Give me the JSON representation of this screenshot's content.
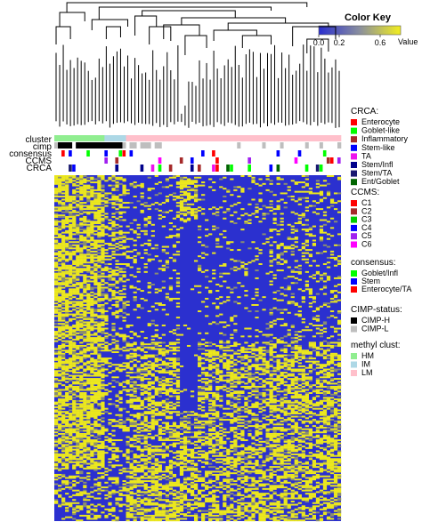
{
  "chart_data": {
    "type": "heatmap",
    "title": "",
    "color_key": {
      "title": "Color Key",
      "axis_label": "Value",
      "ticks": [
        "0.0",
        "0.2",
        "0.6"
      ],
      "tick_values": [
        0.0,
        0.2,
        0.6
      ],
      "range": [
        0,
        0.8
      ],
      "low_color": "#2a2fcf",
      "high_color": "#f2ee1e"
    },
    "annotation_rows": [
      "cluster",
      "cimp",
      "consensus",
      "CCMS",
      "CRCA"
    ],
    "legends": [
      {
        "title": "CRCA:",
        "items": [
          {
            "label": "Enterocyte",
            "color": "#ff0000"
          },
          {
            "label": "Goblet-like",
            "color": "#00ff00"
          },
          {
            "label": "Inflammatory",
            "color": "#a52a2a"
          },
          {
            "label": "Stem-like",
            "color": "#0000ff"
          },
          {
            "label": "TA",
            "color": "#ee11ee"
          },
          {
            "label": "Stem/Infl",
            "color": "#00008b"
          },
          {
            "label": "Stem/TA",
            "color": "#191970"
          },
          {
            "label": "Ent/Goblet",
            "color": "#006400"
          }
        ]
      },
      {
        "title": "CCMS:",
        "items": [
          {
            "label": "C1",
            "color": "#ff0000"
          },
          {
            "label": "C2",
            "color": "#a52a2a"
          },
          {
            "label": "C3",
            "color": "#00cc00"
          },
          {
            "label": "C4",
            "color": "#0000ff"
          },
          {
            "label": "C5",
            "color": "#a020f0"
          },
          {
            "label": "C6",
            "color": "#ff00ff"
          }
        ]
      },
      {
        "title": "consensus:",
        "items": [
          {
            "label": "Goblet/Infl",
            "color": "#00ff00"
          },
          {
            "label": "Stem",
            "color": "#0000ff"
          },
          {
            "label": "Enterocyte/TA",
            "color": "#ff0000"
          }
        ]
      },
      {
        "title": "CIMP-status:",
        "items": [
          {
            "label": "CIMP-H",
            "color": "#000000"
          },
          {
            "label": "CIMP-L",
            "color": "#bebebe"
          }
        ]
      },
      {
        "title": "methyl clust:",
        "items": [
          {
            "label": "HM",
            "color": "#90ee90"
          },
          {
            "label": "IM",
            "color": "#add8e6"
          },
          {
            "label": "LM",
            "color": "#ffc0cb"
          }
        ]
      }
    ],
    "cluster_groups": [
      {
        "label": "HM",
        "count": 14
      },
      {
        "label": "IM",
        "count": 6
      },
      {
        "label": "LM",
        "count": 60
      }
    ],
    "cimp_groups": [
      {
        "label": "CIMP-L",
        "count": 1
      },
      {
        "label": "CIMP-H",
        "count": 4
      },
      {
        "label": "",
        "count": 1
      },
      {
        "label": "CIMP-H",
        "count": 13
      },
      {
        "label": "CIMP-L",
        "count": 1
      },
      {
        "label": "",
        "count": 1
      },
      {
        "label": "CIMP-L",
        "count": 2
      },
      {
        "label": "",
        "count": 1
      },
      {
        "label": "CIMP-L",
        "count": 3
      },
      {
        "label": "",
        "count": 1
      },
      {
        "label": "CIMP-L",
        "count": 2
      },
      {
        "label": "",
        "count": 21
      },
      {
        "label": "CIMP-L",
        "count": 1
      },
      {
        "label": "",
        "count": 6
      },
      {
        "label": "CIMP-L",
        "count": 1
      },
      {
        "label": "",
        "count": 4
      },
      {
        "label": "CIMP-L",
        "count": 1
      },
      {
        "label": "",
        "count": 6
      },
      {
        "label": "CIMP-L",
        "count": 1
      },
      {
        "label": "",
        "count": 3
      },
      {
        "label": "CIMP-L",
        "count": 1
      },
      {
        "label": "",
        "count": 4
      },
      {
        "label": "CIMP-L",
        "count": 1
      }
    ],
    "heatmap_samples": 80,
    "heatmap_features": 220
  }
}
